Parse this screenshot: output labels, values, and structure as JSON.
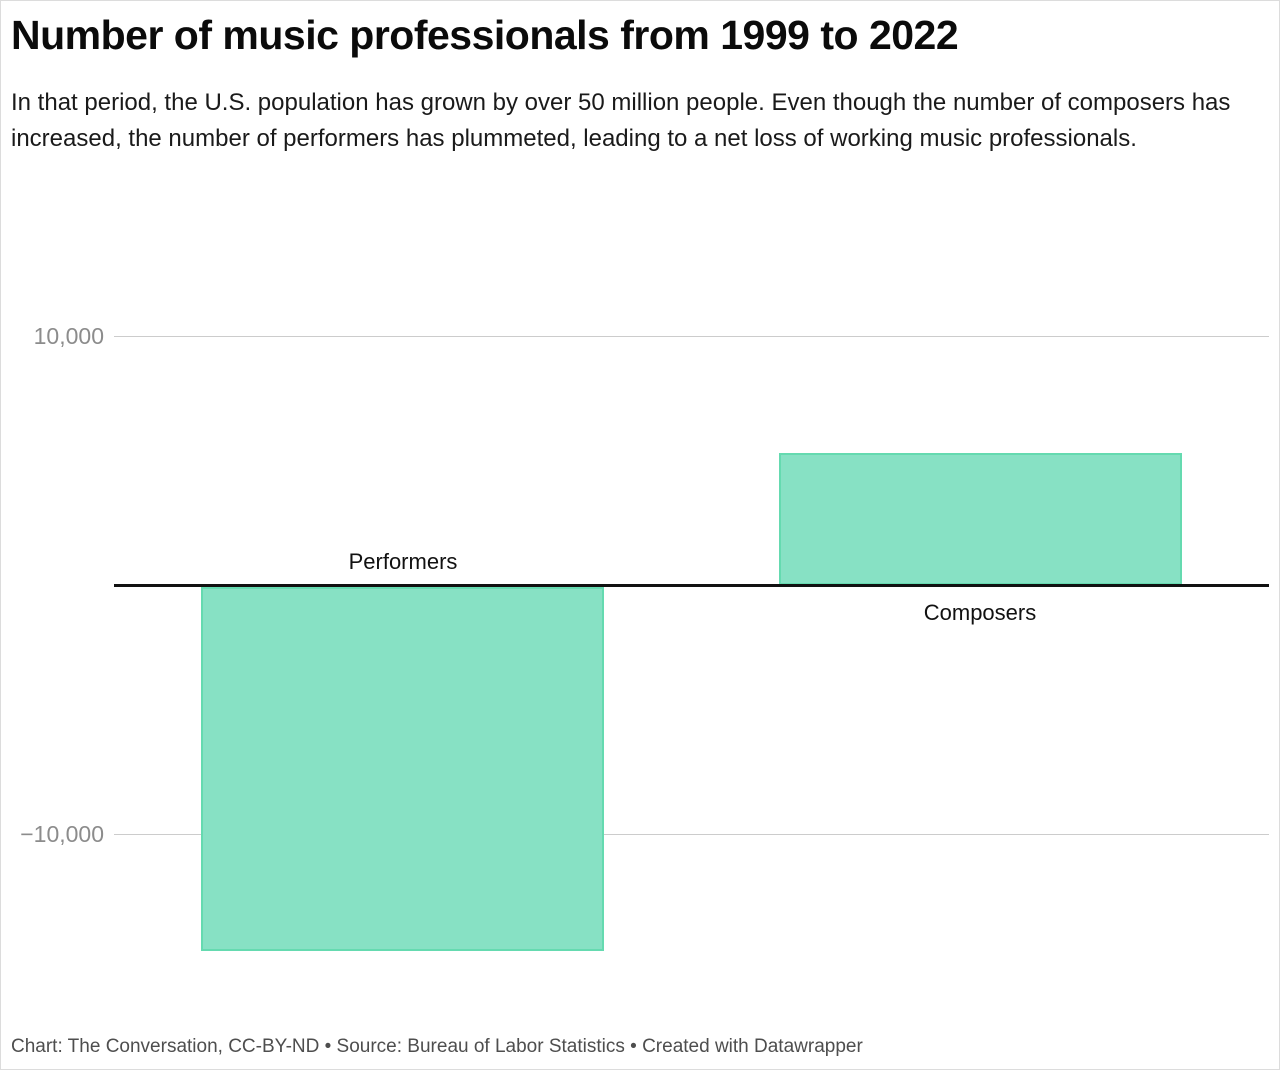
{
  "header": {
    "title": "Number of music professionals from 1999 to 2022",
    "description": "In that period, the U.S. population has grown by over 50 million people. Even though the number of composers has increased, the number of performers has plummeted, leading to a net loss of working music professionals."
  },
  "footer": {
    "text": "Chart: The Conversation, CC-BY-ND • Source: Bureau of Labor Statistics • Created with Datawrapper"
  },
  "colors": {
    "bar_fill": "#87e1c4",
    "bar_border": "#65dab0",
    "gridline": "#cccccc",
    "zero_line": "#111111",
    "tick_label": "#8c8c8c"
  },
  "chart_data": {
    "type": "bar",
    "categories": [
      "Performers",
      "Composers"
    ],
    "values": [
      -14700,
      5300
    ],
    "title": "Number of music professionals from 1999 to 2022",
    "xlabel": "",
    "ylabel": "",
    "ylim": [
      -16600,
      12000
    ],
    "yticks": [
      {
        "value": 10000,
        "label": "10,000"
      },
      {
        "value": -10000,
        "label": "−10,000"
      }
    ],
    "grid": "horizontal",
    "legend": "none",
    "orientation": "vertical",
    "category_label_placement": "opposite side of zero baseline"
  }
}
